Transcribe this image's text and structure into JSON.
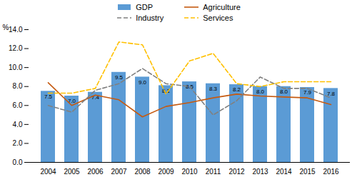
{
  "chart_data": {
    "type": "bar",
    "categories": [
      "2004",
      "2005",
      "2006",
      "2007",
      "2008",
      "2009",
      "2010",
      "2011",
      "2012",
      "2013",
      "2014",
      "2015",
      "2016"
    ],
    "series": [
      {
        "name": "GDP",
        "type": "bar",
        "color": "#5B9BD5",
        "data_labels": true,
        "values": [
          7.5,
          7.0,
          7.4,
          9.5,
          9.0,
          8.1,
          8.5,
          8.3,
          8.2,
          8.0,
          8.0,
          7.9,
          7.8
        ],
        "value_labels": [
          "7.5",
          "7.0",
          "7.4",
          "9.5",
          "9.0",
          "8.1",
          "8.5",
          "8.3",
          "8.2",
          "8.0",
          "8.0",
          "7.9",
          "7.8"
        ]
      },
      {
        "name": "Agriculture",
        "type": "line",
        "color": "#C55A11",
        "line_style": "solid",
        "values": [
          8.4,
          6.0,
          7.1,
          6.6,
          4.8,
          5.9,
          6.3,
          6.8,
          7.2,
          7.0,
          6.9,
          6.8,
          6.1
        ]
      },
      {
        "name": "Industry",
        "type": "line",
        "color": "#808080",
        "line_style": "dashed",
        "values": [
          6.0,
          5.3,
          7.6,
          8.3,
          9.9,
          8.3,
          8.0,
          5.0,
          6.5,
          9.0,
          7.8,
          7.8,
          6.8
        ]
      },
      {
        "name": "Services",
        "type": "line",
        "color": "#FFC000",
        "line_style": "dashed",
        "values": [
          7.3,
          7.3,
          7.8,
          12.7,
          12.4,
          7.2,
          10.7,
          11.5,
          8.3,
          8.0,
          8.5,
          8.5,
          8.5
        ]
      }
    ],
    "ylabel": "%",
    "ylim": [
      0,
      14.0
    ],
    "yticks": [
      {
        "value": 0,
        "label": "0.0"
      },
      {
        "value": 2,
        "label": "2.0"
      },
      {
        "value": 4,
        "label": "4.0"
      },
      {
        "value": 6,
        "label": "6.0"
      },
      {
        "value": 8,
        "label": "8.0"
      },
      {
        "value": 10,
        "label": "10.0"
      },
      {
        "value": 12,
        "label": "12.0"
      },
      {
        "value": 14,
        "label": "14.0"
      }
    ],
    "legend": "top",
    "grid": false
  }
}
